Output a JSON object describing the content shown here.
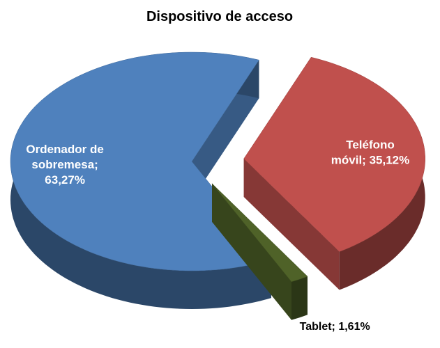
{
  "chart_data": {
    "type": "pie",
    "title": "Dispositivo de acceso",
    "values": [
      63.27,
      35.12,
      1.61
    ],
    "value_labels": [
      "Ordenador de sobremesa; 63,27%",
      "Teléfono móvil; 35,12%",
      "Tablet; 1,61%"
    ],
    "colors": [
      "#4f81bd",
      "#c0504d",
      "#4f6228"
    ]
  }
}
